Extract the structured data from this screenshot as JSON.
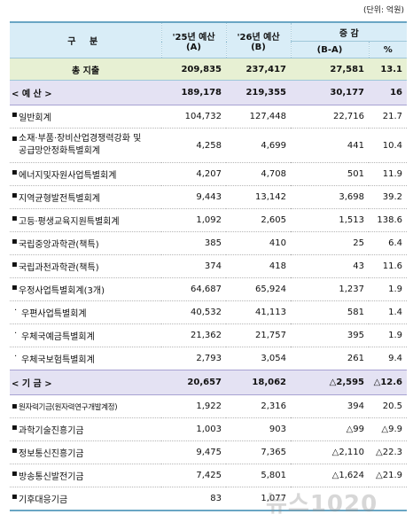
{
  "unit_note": "(단위: 억원)",
  "header": {
    "category": "구   분",
    "col_a_line1": "'25년 예산",
    "col_a_line2": "(A)",
    "col_b_line1": "'26년 예산",
    "col_b_line2": "(B)",
    "change": "증 감",
    "change_abs": "(B-A)",
    "change_pct": "%"
  },
  "total": {
    "name": "총 지출",
    "a": "209,835",
    "b": "237,417",
    "diff": "27,581",
    "pct": "13.1"
  },
  "budget_section": {
    "name": "< 예 산 >",
    "a": "189,178",
    "b": "219,355",
    "diff": "30,177",
    "pct": "16"
  },
  "budget_rows": [
    {
      "bullet": "▪",
      "name": "일반회계",
      "a": "104,732",
      "b": "127,448",
      "diff": "22,716",
      "pct": "21.7"
    },
    {
      "bullet": "▪",
      "name": "소재·부품·장비산업경쟁력강화 및 공급망안정화특별회계",
      "a": "4,258",
      "b": "4,699",
      "diff": "441",
      "pct": "10.4"
    },
    {
      "bullet": "▪",
      "name": "에너지및자원사업특별회계",
      "a": "4,207",
      "b": "4,708",
      "diff": "501",
      "pct": "11.9"
    },
    {
      "bullet": "▪",
      "name": "지역균형발전특별회계",
      "a": "9,443",
      "b": "13,142",
      "diff": "3,698",
      "pct": "39.2"
    },
    {
      "bullet": "▪",
      "name": "고등·평생교육지원특별회계",
      "a": "1,092",
      "b": "2,605",
      "diff": "1,513",
      "pct": "138.6"
    },
    {
      "bullet": "▪",
      "name": "국립중앙과학관(책특)",
      "a": "385",
      "b": "410",
      "diff": "25",
      "pct": "6.4"
    },
    {
      "bullet": "▪",
      "name": "국립과천과학관(책특)",
      "a": "374",
      "b": "418",
      "diff": "43",
      "pct": "11.6"
    },
    {
      "bullet": "▪",
      "name": "우정사업특별회계(3개)",
      "a": "64,687",
      "b": "65,924",
      "diff": "1,237",
      "pct": "1.9"
    },
    {
      "bullet": "·",
      "name": "우편사업특별회계",
      "a": "40,532",
      "b": "41,113",
      "diff": "581",
      "pct": "1.4"
    },
    {
      "bullet": "·",
      "name": "우체국예금특별회계",
      "a": "21,362",
      "b": "21,757",
      "diff": "395",
      "pct": "1.9"
    },
    {
      "bullet": "·",
      "name": "우체국보험특별회계",
      "a": "2,793",
      "b": "3,054",
      "diff": "261",
      "pct": "9.4"
    }
  ],
  "fund_section": {
    "name": "< 기 금 >",
    "a": "20,657",
    "b": "18,062",
    "diff": "△2,595",
    "pct": "△12.6"
  },
  "fund_rows": [
    {
      "bullet": "▪",
      "name": "원자력기금(원자력연구개발계정)",
      "a": "1,922",
      "b": "2,316",
      "diff": "394",
      "pct": "20.5"
    },
    {
      "bullet": "▪",
      "name": "과학기술진흥기금",
      "a": "1,003",
      "b": "903",
      "diff": "△99",
      "pct": "△9.9"
    },
    {
      "bullet": "▪",
      "name": "정보통신진흥기금",
      "a": "9,475",
      "b": "7,365",
      "diff": "△2,110",
      "pct": "△22.3"
    },
    {
      "bullet": "▪",
      "name": "방송통신발전기금",
      "a": "7,425",
      "b": "5,801",
      "diff": "△1,624",
      "pct": "△21.9"
    },
    {
      "bullet": "▪",
      "name": "기후대응기금",
      "a": "83",
      "b": "1,077",
      "diff": "",
      "pct": ""
    }
  ],
  "watermark": "뉴스1020"
}
